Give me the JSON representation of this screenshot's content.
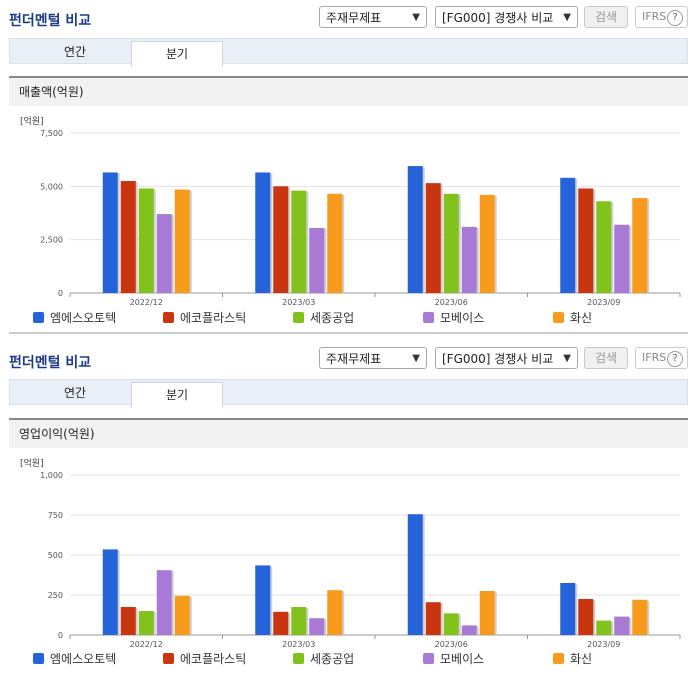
{
  "colors": [
    "#2563d9",
    "#c8350e",
    "#82c21d",
    "#a87ad6",
    "#f89b1c"
  ],
  "panels": [
    {
      "title": "펀더멘털 비교",
      "select1": "주재무제표",
      "select2": "[FG000] 경쟁사 비교",
      "search_label": "검색",
      "ifrs_label": "IFRS",
      "help_label": "?",
      "tabs": [
        "연간",
        "분기"
      ],
      "section_title": "매출액(억원)",
      "unit": "[억원]"
    },
    {
      "title": "펀더멘털 비교",
      "select1": "주재무제표",
      "select2": "[FG000] 경쟁사 비교",
      "search_label": "검색",
      "ifrs_label": "IFRS",
      "help_label": "?",
      "tabs": [
        "연간",
        "분기"
      ],
      "section_title": "영업이익(억원)",
      "unit": "[억원]"
    }
  ],
  "legend": [
    "엠에스오토텍",
    "에코플라스틱",
    "세종공업",
    "모베이스",
    "화신"
  ],
  "chart_data": [
    {
      "type": "bar",
      "title": "매출액(억원)",
      "ylabel": "[억원]",
      "categories": [
        "2022/12",
        "2023/03",
        "2023/06",
        "2023/09"
      ],
      "ylim": [
        0,
        7500
      ],
      "yticks": [
        "0",
        "2,500",
        "5,000",
        "7,500"
      ],
      "ytick_values": [
        0,
        2500,
        5000,
        7500
      ],
      "series": [
        {
          "name": "엠에스오토텍",
          "values": [
            5650,
            5650,
            5950,
            5400
          ]
        },
        {
          "name": "에코플라스틱",
          "values": [
            5250,
            5000,
            5150,
            4900
          ]
        },
        {
          "name": "세종공업",
          "values": [
            4900,
            4800,
            4650,
            4300
          ]
        },
        {
          "name": "모베이스",
          "values": [
            3700,
            3050,
            3100,
            3200
          ]
        },
        {
          "name": "화신",
          "values": [
            4850,
            4650,
            4600,
            4450
          ]
        }
      ]
    },
    {
      "type": "bar",
      "title": "영업이익(억원)",
      "ylabel": "[억원]",
      "categories": [
        "2022/12",
        "2023/03",
        "2023/06",
        "2023/09"
      ],
      "ylim": [
        0,
        1000
      ],
      "yticks": [
        "0",
        "250",
        "500",
        "750",
        "1,000"
      ],
      "ytick_values": [
        0,
        250,
        500,
        750,
        1000
      ],
      "series": [
        {
          "name": "엠에스오토텍",
          "values": [
            535,
            435,
            755,
            325
          ]
        },
        {
          "name": "에코플라스틱",
          "values": [
            175,
            145,
            205,
            225
          ]
        },
        {
          "name": "세종공업",
          "values": [
            150,
            175,
            135,
            90
          ]
        },
        {
          "name": "모베이스",
          "values": [
            405,
            105,
            60,
            115
          ]
        },
        {
          "name": "화신",
          "values": [
            245,
            280,
            275,
            220
          ]
        }
      ]
    }
  ]
}
